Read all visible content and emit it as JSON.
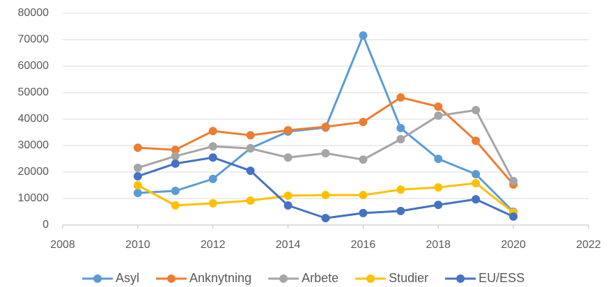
{
  "chart_data": {
    "type": "line",
    "x": [
      2010,
      2011,
      2012,
      2013,
      2014,
      2015,
      2016,
      2017,
      2018,
      2019,
      2020
    ],
    "series": [
      {
        "name": "Asyl",
        "color": "#5b9bd5",
        "values": [
          12100,
          12900,
          17400,
          29000,
          35300,
          36800,
          71600,
          36600,
          25000,
          19200,
          5000
        ]
      },
      {
        "name": "Anknytning",
        "color": "#ed7d31",
        "values": [
          29200,
          28400,
          35500,
          33900,
          35800,
          37100,
          38900,
          48200,
          44700,
          31800,
          15300
        ]
      },
      {
        "name": "Arbete",
        "color": "#a5a5a5",
        "values": [
          21600,
          26000,
          29700,
          28900,
          25500,
          27100,
          24700,
          32400,
          41300,
          43400,
          16600
        ]
      },
      {
        "name": "Studier",
        "color": "#ffc000",
        "values": [
          15000,
          7400,
          8200,
          9200,
          11100,
          11300,
          11300,
          13400,
          14200,
          15800,
          4700
        ]
      },
      {
        "name": "EU/ESS",
        "color": "#4472c4",
        "values": [
          18400,
          23200,
          25500,
          20500,
          7400,
          2600,
          4500,
          5300,
          7600,
          9700,
          3200
        ]
      }
    ],
    "xlim": [
      2008,
      2022
    ],
    "xticks": [
      2008,
      2010,
      2012,
      2014,
      2016,
      2018,
      2020,
      2022
    ],
    "ylim": [
      0,
      80000
    ],
    "yticks": [
      0,
      10000,
      20000,
      30000,
      40000,
      50000,
      60000,
      70000,
      80000
    ],
    "grid": true,
    "legend": "bottom"
  }
}
